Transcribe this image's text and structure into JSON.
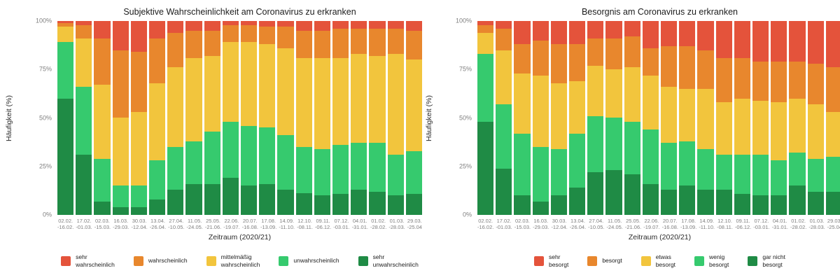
{
  "chart_data": [
    {
      "type": "bar",
      "stacked": true,
      "percent": true,
      "title": "Subjektive Wahrscheinlichkeit am Coronavirus zu erkranken",
      "xlabel": "Zeitraum (2020/21)",
      "ylabel": "Häufigkeit (%)",
      "ylim": [
        0,
        100
      ],
      "yticks": [
        0,
        25,
        50,
        75,
        100
      ],
      "ytick_labels": [
        "0%",
        "25%",
        "50%",
        "75%",
        "100%"
      ],
      "grid": false,
      "legend_position": "bottom",
      "categories": [
        "02.02.\n-16.02.",
        "17.02.\n-01.03.",
        "02.03.\n-15.03.",
        "16.03.\n-29.03.",
        "30.03.\n-12.04.",
        "13.04.\n-26.04.",
        "27.04.\n-10.05.",
        "11.05.\n-24.05.",
        "25.05.\n-21.06.",
        "22.06.\n-19.07.",
        "20.07.\n-16.08.",
        "17.08.\n-13.09.",
        "14.09.\n-11.10.",
        "12.10.\n-08.11.",
        "09.11.\n-06.12.",
        "07.12.\n-03.01.",
        "04.01.\n-31.01.",
        "01.02.\n-28.02.",
        "01.03.\n-28.03.",
        "29.03.\n-25.04"
      ],
      "series": [
        {
          "name": "sehr wahrscheinlich",
          "label": "sehr\nwahrscheinlich",
          "color": "#e4533b",
          "values": [
            1,
            2,
            9,
            15,
            16,
            9,
            6,
            5,
            5,
            2,
            2,
            3,
            3,
            5,
            5,
            4,
            4,
            4,
            4,
            5
          ]
        },
        {
          "name": "wahrscheinlich",
          "label": "wahrscheinlich",
          "color": "#e8872d",
          "values": [
            2,
            7,
            24,
            35,
            31,
            23,
            18,
            14,
            13,
            9,
            9,
            9,
            11,
            14,
            14,
            15,
            13,
            14,
            13,
            15
          ]
        },
        {
          "name": "mittelmäßig wahrscheinlich",
          "label": "mittelmäßig\nwahrscheinlich",
          "color": "#f2c53d",
          "values": [
            8,
            25,
            38,
            35,
            38,
            40,
            41,
            43,
            39,
            41,
            43,
            43,
            45,
            46,
            47,
            45,
            46,
            45,
            52,
            47
          ]
        },
        {
          "name": "unwahrscheinlich",
          "label": "unwahrscheinlich",
          "color": "#36ca6e",
          "values": [
            29,
            35,
            22,
            11,
            11,
            20,
            22,
            22,
            27,
            29,
            31,
            29,
            28,
            24,
            24,
            25,
            24,
            25,
            21,
            22
          ]
        },
        {
          "name": "sehr unwahrscheinlich",
          "label": "sehr\nunwahrscheinlich",
          "color": "#1f8b45",
          "values": [
            60,
            31,
            7,
            4,
            4,
            8,
            13,
            16,
            16,
            19,
            15,
            16,
            13,
            11,
            10,
            11,
            13,
            12,
            10,
            11
          ]
        }
      ]
    },
    {
      "type": "bar",
      "stacked": true,
      "percent": true,
      "title": "Besorgnis am Coronavirus zu erkranken",
      "xlabel": "Zeitraum (2020/21)",
      "ylabel": "Häufigkeit (%)",
      "ylim": [
        0,
        100
      ],
      "yticks": [
        0,
        25,
        50,
        75,
        100
      ],
      "ytick_labels": [
        "0%",
        "25%",
        "50%",
        "75%",
        "100%"
      ],
      "grid": false,
      "legend_position": "bottom",
      "categories": [
        "02.02.\n-16.02.",
        "17.02.\n-01.03.",
        "02.03.\n-15.03.",
        "16.03.\n-29.03.",
        "30.03.\n-12.04.",
        "13.04.\n-26.04.",
        "27.04.\n-10.05.",
        "11.05.\n-24.05.",
        "25.05.\n-21.06.",
        "22.06.\n-19.07.",
        "20.07.\n-16.08.",
        "17.08.\n-13.09.",
        "14.09.\n-11.10.",
        "12.10.\n-08.11.",
        "09.11.\n-06.12.",
        "07.12.\n-03.01.",
        "04.01.\n-31.01.",
        "01.02.\n-28.02.",
        "01.03.\n-28.03.",
        "29.03.\n-25.04"
      ],
      "series": [
        {
          "name": "sehr besorgt",
          "label": "sehr\nbesorgt",
          "color": "#e4533b",
          "values": [
            2,
            4,
            12,
            10,
            12,
            12,
            9,
            9,
            8,
            14,
            13,
            13,
            15,
            19,
            19,
            21,
            21,
            21,
            22,
            24
          ]
        },
        {
          "name": "besorgt",
          "label": "besorgt",
          "color": "#e8872d",
          "values": [
            4,
            11,
            15,
            18,
            20,
            19,
            14,
            16,
            16,
            14,
            21,
            22,
            20,
            23,
            21,
            20,
            21,
            19,
            21,
            23
          ]
        },
        {
          "name": "etwas besorgt",
          "label": "etwas\nbesorgt",
          "color": "#f2c53d",
          "values": [
            11,
            28,
            31,
            37,
            34,
            27,
            26,
            25,
            28,
            28,
            29,
            27,
            31,
            27,
            29,
            28,
            30,
            28,
            28,
            23
          ]
        },
        {
          "name": "wenig besorgt",
          "label": "wenig\nbesorgt",
          "color": "#36ca6e",
          "values": [
            35,
            33,
            32,
            28,
            24,
            28,
            29,
            27,
            27,
            28,
            24,
            23,
            21,
            18,
            20,
            21,
            18,
            17,
            17,
            18
          ]
        },
        {
          "name": "gar nicht besorgt",
          "label": "gar nicht\nbesorgt",
          "color": "#1f8b45",
          "values": [
            48,
            24,
            10,
            7,
            10,
            14,
            22,
            23,
            21,
            16,
            13,
            15,
            13,
            13,
            11,
            10,
            10,
            15,
            12,
            12
          ]
        }
      ]
    }
  ]
}
